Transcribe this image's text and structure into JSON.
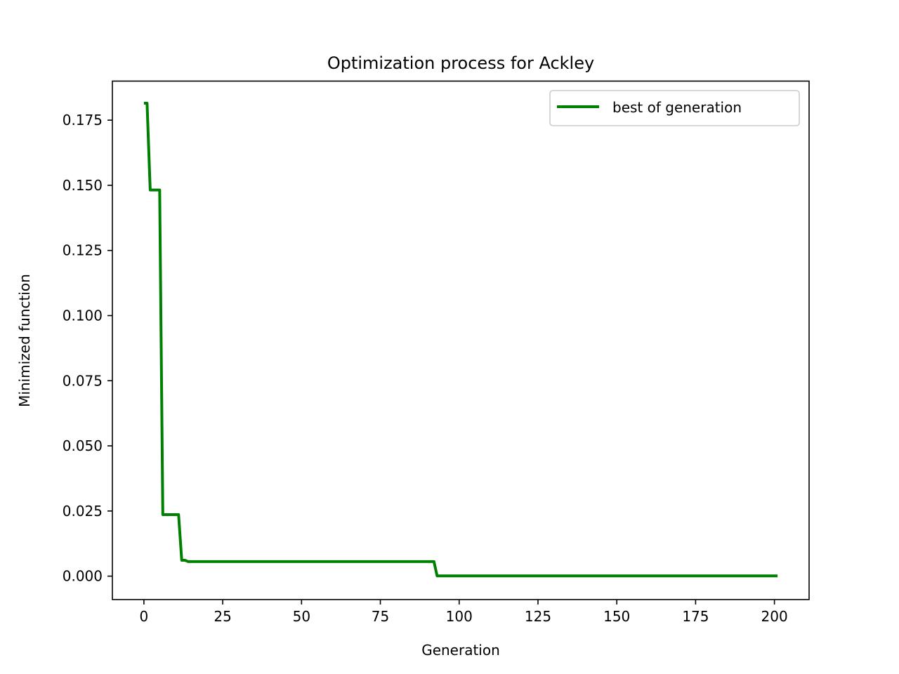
{
  "chart_data": {
    "type": "line",
    "title": "Optimization process for Ackley",
    "xlabel": "Generation",
    "ylabel": "Minimized function",
    "xlim": [
      -10,
      211
    ],
    "ylim": [
      -0.009,
      0.19
    ],
    "xticks": [
      0,
      25,
      50,
      75,
      100,
      125,
      150,
      175,
      200
    ],
    "xtick_labels": [
      "0",
      "25",
      "50",
      "75",
      "100",
      "125",
      "150",
      "175",
      "200"
    ],
    "yticks": [
      0.0,
      0.025,
      0.05,
      0.075,
      0.1,
      0.125,
      0.15,
      0.175
    ],
    "ytick_labels": [
      "0.000",
      "0.025",
      "0.050",
      "0.075",
      "0.100",
      "0.125",
      "0.150",
      "0.175"
    ],
    "grid": false,
    "legend_position": "top-right",
    "series": [
      {
        "name": "best of generation",
        "color": "#008000",
        "x": [
          0,
          1,
          2,
          3,
          4,
          5,
          6,
          7,
          8,
          9,
          10,
          11,
          12,
          13,
          14,
          20,
          30,
          40,
          50,
          60,
          70,
          80,
          90,
          92,
          93,
          100,
          120,
          140,
          160,
          180,
          200,
          201
        ],
        "y": [
          0.1815,
          0.1815,
          0.1482,
          0.1482,
          0.1482,
          0.1482,
          0.0236,
          0.0236,
          0.0236,
          0.0236,
          0.0236,
          0.0236,
          0.0061,
          0.0061,
          0.0056,
          0.0056,
          0.0056,
          0.0056,
          0.0056,
          0.0056,
          0.0056,
          0.0056,
          0.0056,
          0.0056,
          0.0001,
          0.0001,
          0.0001,
          0.0001,
          0.0001,
          0.0001,
          0.0001,
          0.0001
        ]
      }
    ]
  }
}
